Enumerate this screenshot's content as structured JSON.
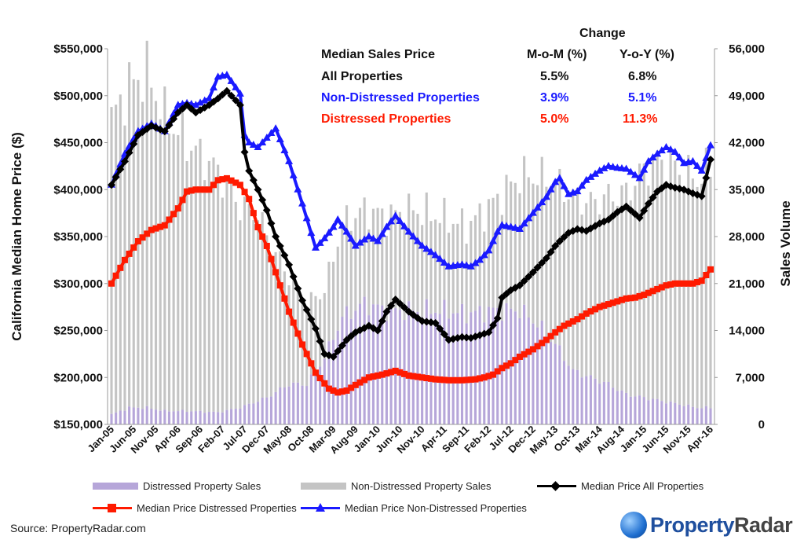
{
  "chart_data": {
    "type": "bar+line",
    "title": "",
    "ylabel": "California Median Home Price ($)",
    "y2label": "Sales Volume",
    "ylim": [
      150000,
      550000
    ],
    "y2lim": [
      0,
      56000
    ],
    "yticks": [
      "$150,000",
      "$200,000",
      "$250,000",
      "$300,000",
      "$350,000",
      "$400,000",
      "$450,000",
      "$500,000",
      "$550,000"
    ],
    "y2ticks": [
      "0",
      "7,000",
      "14,000",
      "21,000",
      "28,000",
      "35,000",
      "42,000",
      "49,000",
      "56,000"
    ],
    "xticks": [
      "Jan-05",
      "Jun-05",
      "Nov-05",
      "Apr-06",
      "Sep-06",
      "Feb-07",
      "Jul-07",
      "Dec-07",
      "May-08",
      "Oct-08",
      "Mar-09",
      "Aug-09",
      "Jan-10",
      "Jun-10",
      "Nov-10",
      "Apr-11",
      "Sep-11",
      "Feb-12",
      "Jul-12",
      "Dec-12",
      "May-13",
      "Oct-13",
      "Mar-14",
      "Aug-14",
      "Jan-15",
      "Jun-15",
      "Nov-15",
      "Apr-16"
    ],
    "n_months": 136,
    "bar_anchors": {
      "month_index": [
        0,
        4,
        8,
        12,
        17,
        24,
        29,
        33,
        35,
        40,
        44,
        48,
        52,
        57,
        62,
        68,
        74,
        80,
        86,
        92,
        96,
        100,
        104,
        108,
        112,
        116,
        120,
        124,
        128,
        132,
        135
      ],
      "distressed_sales": [
        1500,
        2500,
        2500,
        2000,
        2000,
        1800,
        2500,
        3500,
        4000,
        6000,
        6000,
        10000,
        16000,
        18000,
        17000,
        17000,
        17000,
        16500,
        17000,
        17000,
        15000,
        12000,
        8000,
        7000,
        6000,
        4500,
        4000,
        3500,
        3000,
        2500,
        2500
      ],
      "non_distressed_sales": [
        44000,
        48000,
        50000,
        44000,
        40000,
        36000,
        30000,
        28000,
        24000,
        16000,
        12000,
        10000,
        14000,
        14000,
        14000,
        15000,
        14000,
        13000,
        16000,
        20000,
        22000,
        24000,
        26000,
        26000,
        28000,
        30000,
        34000,
        36000,
        35000,
        34000,
        36000
      ]
    },
    "series": [
      {
        "name": "Median Price All Properties",
        "color": "#000000",
        "marker": "diamond",
        "anchors": {
          "month_index": [
            0,
            3,
            6,
            9,
            12,
            15,
            17,
            19,
            22,
            24,
            26,
            29,
            30,
            31,
            33,
            35,
            37,
            40,
            43,
            46,
            48,
            50,
            51,
            53,
            55,
            58,
            60,
            62,
            64,
            67,
            70,
            73,
            76,
            79,
            81,
            83,
            85,
            87,
            88,
            90,
            92,
            95,
            98,
            100,
            101,
            103,
            105,
            107,
            110,
            112,
            114,
            116,
            119,
            121,
            123,
            125,
            127,
            129,
            131,
            133,
            135
          ],
          "values": [
            405000,
            430000,
            458000,
            468000,
            462000,
            482000,
            490000,
            482000,
            490000,
            497000,
            505000,
            490000,
            440000,
            420000,
            400000,
            378000,
            350000,
            320000,
            282000,
            252000,
            225000,
            222000,
            228000,
            240000,
            248000,
            255000,
            250000,
            270000,
            283000,
            270000,
            260000,
            258000,
            240000,
            243000,
            242000,
            245000,
            248000,
            263000,
            285000,
            293000,
            298000,
            312000,
            327000,
            340000,
            345000,
            354000,
            358000,
            356000,
            364000,
            368000,
            376000,
            382000,
            370000,
            385000,
            398000,
            405000,
            402000,
            400000,
            396000,
            393000,
            432000
          ]
        }
      },
      {
        "name": "Median Price Distressed Properties",
        "color": "#ff1a00",
        "marker": "square",
        "anchors": {
          "month_index": [
            0,
            3,
            6,
            9,
            12,
            15,
            17,
            19,
            22,
            24,
            26,
            29,
            31,
            33,
            35,
            37,
            40,
            43,
            46,
            49,
            51,
            53,
            55,
            58,
            61,
            64,
            67,
            70,
            73,
            76,
            79,
            82,
            84,
            86,
            88,
            90,
            92,
            95,
            98,
            100,
            102,
            105,
            107,
            110,
            112,
            114,
            116,
            118,
            120,
            122,
            125,
            127,
            129,
            131,
            133,
            135
          ],
          "values": [
            300000,
            325000,
            345000,
            357000,
            362000,
            380000,
            398000,
            400000,
            400000,
            410000,
            412000,
            405000,
            390000,
            360000,
            340000,
            312000,
            270000,
            235000,
            205000,
            188000,
            184000,
            186000,
            192000,
            200000,
            203000,
            207000,
            202000,
            200000,
            198000,
            197000,
            197000,
            198000,
            200000,
            203000,
            210000,
            215000,
            222000,
            230000,
            240000,
            248000,
            255000,
            262000,
            268000,
            275000,
            278000,
            281000,
            284000,
            285000,
            288000,
            292000,
            298000,
            300000,
            300000,
            300000,
            303000,
            315000
          ]
        }
      },
      {
        "name": "Median Price Non-Distressed Properties",
        "color": "#1a1aff",
        "marker": "triangle",
        "anchors": {
          "month_index": [
            0,
            3,
            6,
            9,
            12,
            15,
            17,
            19,
            22,
            24,
            26,
            29,
            30,
            31,
            33,
            35,
            37,
            40,
            43,
            46,
            48,
            50,
            51,
            53,
            55,
            58,
            60,
            62,
            64,
            67,
            70,
            73,
            76,
            79,
            81,
            83,
            85,
            87,
            88,
            90,
            92,
            95,
            98,
            100,
            101,
            103,
            105,
            107,
            110,
            112,
            114,
            116,
            119,
            121,
            123,
            125,
            127,
            129,
            131,
            133,
            135
          ],
          "values": [
            405000,
            438000,
            462000,
            470000,
            462000,
            490000,
            492000,
            490000,
            497000,
            520000,
            522000,
            502000,
            458000,
            450000,
            445000,
            455000,
            465000,
            430000,
            385000,
            338000,
            348000,
            360000,
            368000,
            355000,
            340000,
            350000,
            345000,
            360000,
            372000,
            355000,
            340000,
            330000,
            318000,
            320000,
            318000,
            325000,
            335000,
            355000,
            362000,
            360000,
            358000,
            375000,
            392000,
            408000,
            412000,
            395000,
            398000,
            410000,
            420000,
            425000,
            423000,
            422000,
            412000,
            430000,
            438000,
            445000,
            440000,
            428000,
            430000,
            420000,
            447000
          ]
        }
      }
    ]
  },
  "annotations": {
    "change_header": "Change",
    "label_header": "Median Sales Price",
    "mom_header": "M-o-M (%)",
    "yoy_header": "Y-o-Y (%)",
    "rows": [
      {
        "label": "All Properties",
        "mom": "5.5%",
        "yoy": "6.8%",
        "color": "#111111"
      },
      {
        "label": "Non-Distressed Properties",
        "mom": "3.9%",
        "yoy": "5.1%",
        "color": "#1a1aff"
      },
      {
        "label": "Distressed Properties",
        "mom": "5.0%",
        "yoy": "11.3%",
        "color": "#ff1a00"
      }
    ]
  },
  "legend": {
    "distressed_sales": "Distressed Property Sales",
    "non_distressed_sales": "Non-Distressed Property Sales",
    "all_price": "Median Price All Properties",
    "distressed_price": "Median Price Distressed Properties",
    "non_distressed_price": "Median Price Non-Distressed Properties"
  },
  "colors": {
    "distressed_bar": "#b6a6d9",
    "non_distressed_bar": "#c4c4c4",
    "all_line": "#000000",
    "distressed_line": "#ff1a00",
    "non_distressed_line": "#1a1aff"
  },
  "source": "Source: PropertyRadar.com",
  "logo": {
    "part1": "Property",
    "part2": "Radar"
  }
}
